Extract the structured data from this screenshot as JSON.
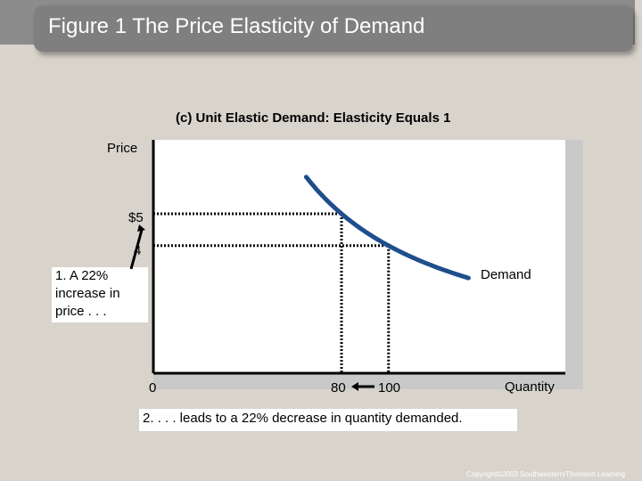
{
  "slide": {
    "title": "Figure 1 The Price Elasticity of Demand",
    "copyright": "Copyright©2003 Southwestern/Thomson Learning"
  },
  "chart_data": {
    "type": "line",
    "title": "(c) Unit Elastic Demand: Elasticity Equals 1",
    "xlabel": "Quantity",
    "ylabel": "Price",
    "x_ticks": [
      "0",
      "80",
      "100"
    ],
    "y_ticks": [
      "$5",
      "4"
    ],
    "series": [
      {
        "name": "Demand",
        "points": [
          [
            80,
            5
          ],
          [
            100,
            4
          ]
        ]
      }
    ],
    "annotations": {
      "price_change": "1. A 22% increase in price . . .",
      "quantity_change": "2. . . . leads to a 22% decrease in quantity demanded."
    },
    "colors": {
      "curve": "#1f4e8c"
    }
  }
}
